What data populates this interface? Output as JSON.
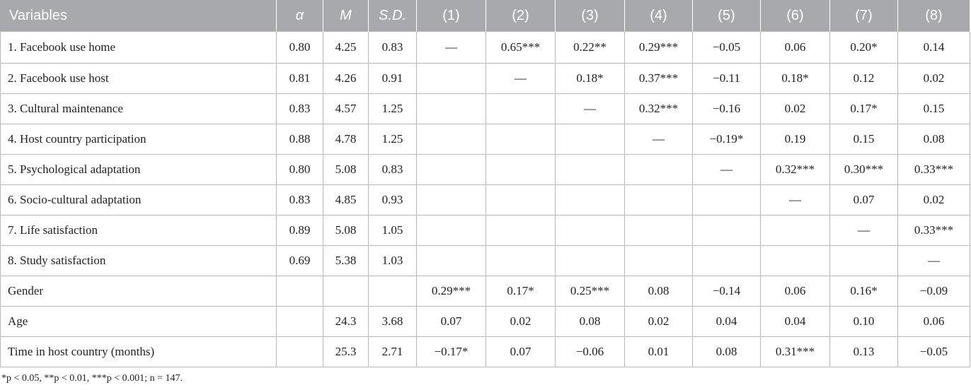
{
  "header": [
    "Variables",
    "α",
    "M",
    "S.D.",
    "(1)",
    "(2)",
    "(3)",
    "(4)",
    "(5)",
    "(6)",
    "(7)",
    "(8)"
  ],
  "rows": [
    [
      "1. Facebook use home",
      "0.80",
      "4.25",
      "0.83",
      "—",
      "0.65***",
      "0.22**",
      "0.29***",
      "−0.05",
      "0.06",
      "0.20*",
      "0.14"
    ],
    [
      "2. Facebook use host",
      "0.81",
      "4.26",
      "0.91",
      "",
      "—",
      "0.18*",
      "0.37***",
      "−0.11",
      "0.18*",
      "0.12",
      "0.02"
    ],
    [
      "3. Cultural maintenance",
      "0.83",
      "4.57",
      "1.25",
      "",
      "",
      "—",
      "0.32***",
      "−0.16",
      "0.02",
      "0.17*",
      "0.15"
    ],
    [
      "4. Host country participation",
      "0.88",
      "4.78",
      "1.25",
      "",
      "",
      "",
      "—",
      "−0.19*",
      "0.19",
      "0.15",
      "0.08"
    ],
    [
      "5. Psychological adaptation",
      "0.80",
      "5.08",
      "0.83",
      "",
      "",
      "",
      "",
      "—",
      "0.32***",
      "0.30***",
      "0.33***"
    ],
    [
      "6. Socio-cultural adaptation",
      "0.83",
      "4.85",
      "0.93",
      "",
      "",
      "",
      "",
      "",
      "—",
      "0.07",
      "0.02"
    ],
    [
      "7. Life satisfaction",
      "0.89",
      "5.08",
      "1.05",
      "",
      "",
      "",
      "",
      "",
      "",
      "—",
      "0.33***"
    ],
    [
      "8. Study satisfaction",
      "0.69",
      "5.38",
      "1.03",
      "",
      "",
      "",
      "",
      "",
      "",
      "",
      "—"
    ],
    [
      "Gender",
      "",
      "",
      "",
      "0.29***",
      "0.17*",
      "0.25***",
      "0.08",
      "−0.14",
      "0.06",
      "0.16*",
      "−0.09"
    ],
    [
      "Age",
      "",
      "24.3",
      "3.68",
      "0.07",
      "0.02",
      "0.08",
      "0.02",
      "0.04",
      "0.04",
      "0.10",
      "0.06"
    ],
    [
      "Time in host country (months)",
      "",
      "25.3",
      "2.71",
      "−0.17*",
      "0.07",
      "−0.06",
      "0.01",
      "0.08",
      "0.31***",
      "0.13",
      "−0.05"
    ]
  ],
  "note": "*p < 0.05, **p < 0.01, ***p < 0.001; n = 147."
}
